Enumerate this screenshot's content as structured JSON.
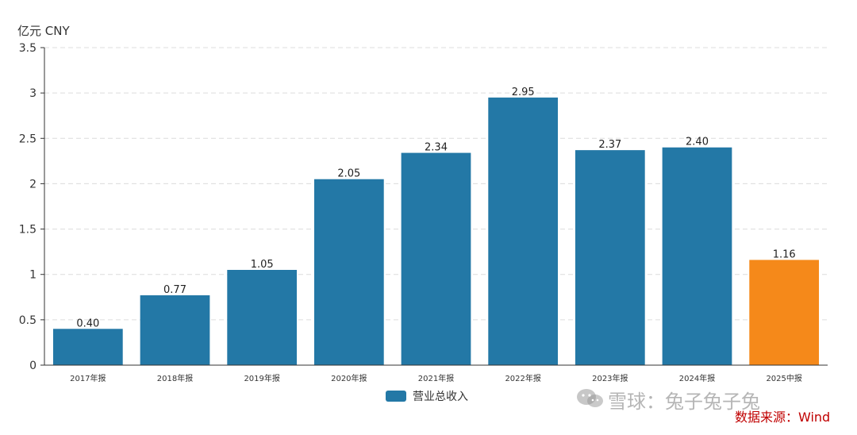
{
  "chart_data": {
    "type": "bar",
    "ylabel": "亿元  CNY",
    "categories": [
      "2017年报",
      "2018年报",
      "2019年报",
      "2020年报",
      "2021年报",
      "2022年报",
      "2023年报",
      "2024年报",
      "2025中报"
    ],
    "values": [
      0.4,
      0.77,
      1.05,
      2.05,
      2.34,
      2.95,
      2.37,
      2.4,
      1.16
    ],
    "value_labels": [
      "0.40",
      "0.77",
      "1.05",
      "2.05",
      "2.34",
      "2.95",
      "2.37",
      "2.40",
      "1.16"
    ],
    "yticks": [
      "0",
      "0.5",
      "1",
      "1.5",
      "2",
      "2.5",
      "3",
      "3.5"
    ],
    "ylim": [
      0,
      3.5
    ],
    "grid": true,
    "series_name": "营业总收入",
    "legend_position": "bottom-center",
    "colors": {
      "default": "#2378a6",
      "highlight": "#f5891a"
    },
    "highlight_index": 8
  },
  "watermark": {
    "text": "雪球：兔子兔子兔"
  },
  "source": {
    "text": "数据来源：Wind"
  }
}
